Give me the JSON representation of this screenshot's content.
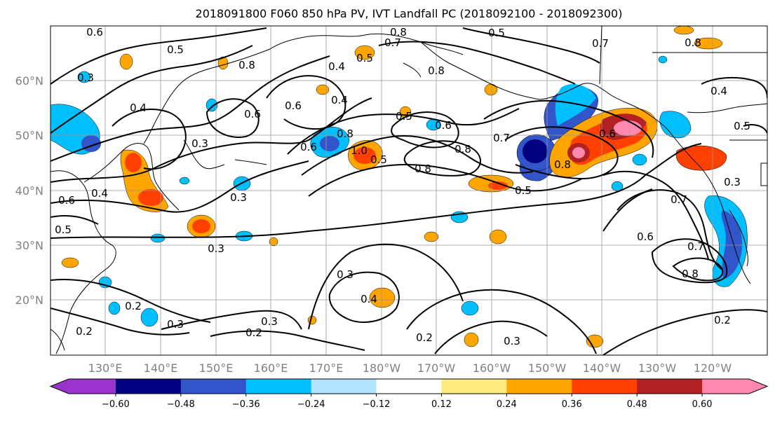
{
  "figure": {
    "title": "2018091800 F060 850 hPa PV, IVT Landfall PC (2018092100 - 2018092300)"
  },
  "axes": {
    "lon_ticks": [
      "130°E",
      "140°E",
      "150°E",
      "160°E",
      "170°E",
      "180°W",
      "170°W",
      "160°W",
      "150°W",
      "140°W",
      "130°W",
      "120°W"
    ],
    "lat_ticks": [
      "20°N",
      "30°N",
      "40°N",
      "50°N",
      "60°N"
    ],
    "tick_color": "#808080"
  },
  "colorbar": {
    "colors": [
      "#9933cc",
      "#000080",
      "#3355cc",
      "#00bfff",
      "#b3e5ff",
      "#ffffff",
      "#ffeb80",
      "#ffa500",
      "#ff4000",
      "#b22222",
      "#ff88b0"
    ],
    "tick_labels": [
      "−0.60",
      "−0.48",
      "−0.36",
      "−0.24",
      "−0.12",
      "0.12",
      "0.24",
      "0.36",
      "0.48",
      "0.60"
    ]
  },
  "contour_labels": [
    {
      "text": "0.6"
    },
    {
      "text": "0.5"
    },
    {
      "text": "0.8"
    },
    {
      "text": "0.7"
    },
    {
      "text": "0.5"
    },
    {
      "text": "0.8"
    },
    {
      "text": "0.7"
    },
    {
      "text": "0.8"
    },
    {
      "text": "0.4"
    },
    {
      "text": "0.5"
    },
    {
      "text": "0.8"
    },
    {
      "text": "0.3"
    },
    {
      "text": "0.6"
    },
    {
      "text": "0.4"
    },
    {
      "text": "0.6"
    },
    {
      "text": "0.4"
    },
    {
      "text": "0.5"
    },
    {
      "text": "0.3"
    },
    {
      "text": "0.6"
    },
    {
      "text": "0.8"
    },
    {
      "text": "0.6"
    },
    {
      "text": "1.0"
    },
    {
      "text": "0.5"
    },
    {
      "text": "0.8"
    },
    {
      "text": "0.8"
    },
    {
      "text": "0.7"
    },
    {
      "text": "0.6"
    },
    {
      "text": "0.8"
    },
    {
      "text": "0.5"
    },
    {
      "text": "0.4"
    },
    {
      "text": "0.6"
    },
    {
      "text": "0.5"
    },
    {
      "text": "0.3"
    },
    {
      "text": "0.3"
    },
    {
      "text": "0.6"
    },
    {
      "text": "0.7"
    },
    {
      "text": "0.8"
    },
    {
      "text": "0.3"
    },
    {
      "text": "0.4"
    },
    {
      "text": "0.2"
    },
    {
      "text": "0.3"
    },
    {
      "text": "0.2"
    },
    {
      "text": "0.3"
    },
    {
      "text": "0.2"
    },
    {
      "text": "0.2"
    },
    {
      "text": "0.3"
    },
    {
      "text": "0.2"
    },
    {
      "text": "0.4"
    },
    {
      "text": "0.7"
    },
    {
      "text": "0.5"
    }
  ]
}
